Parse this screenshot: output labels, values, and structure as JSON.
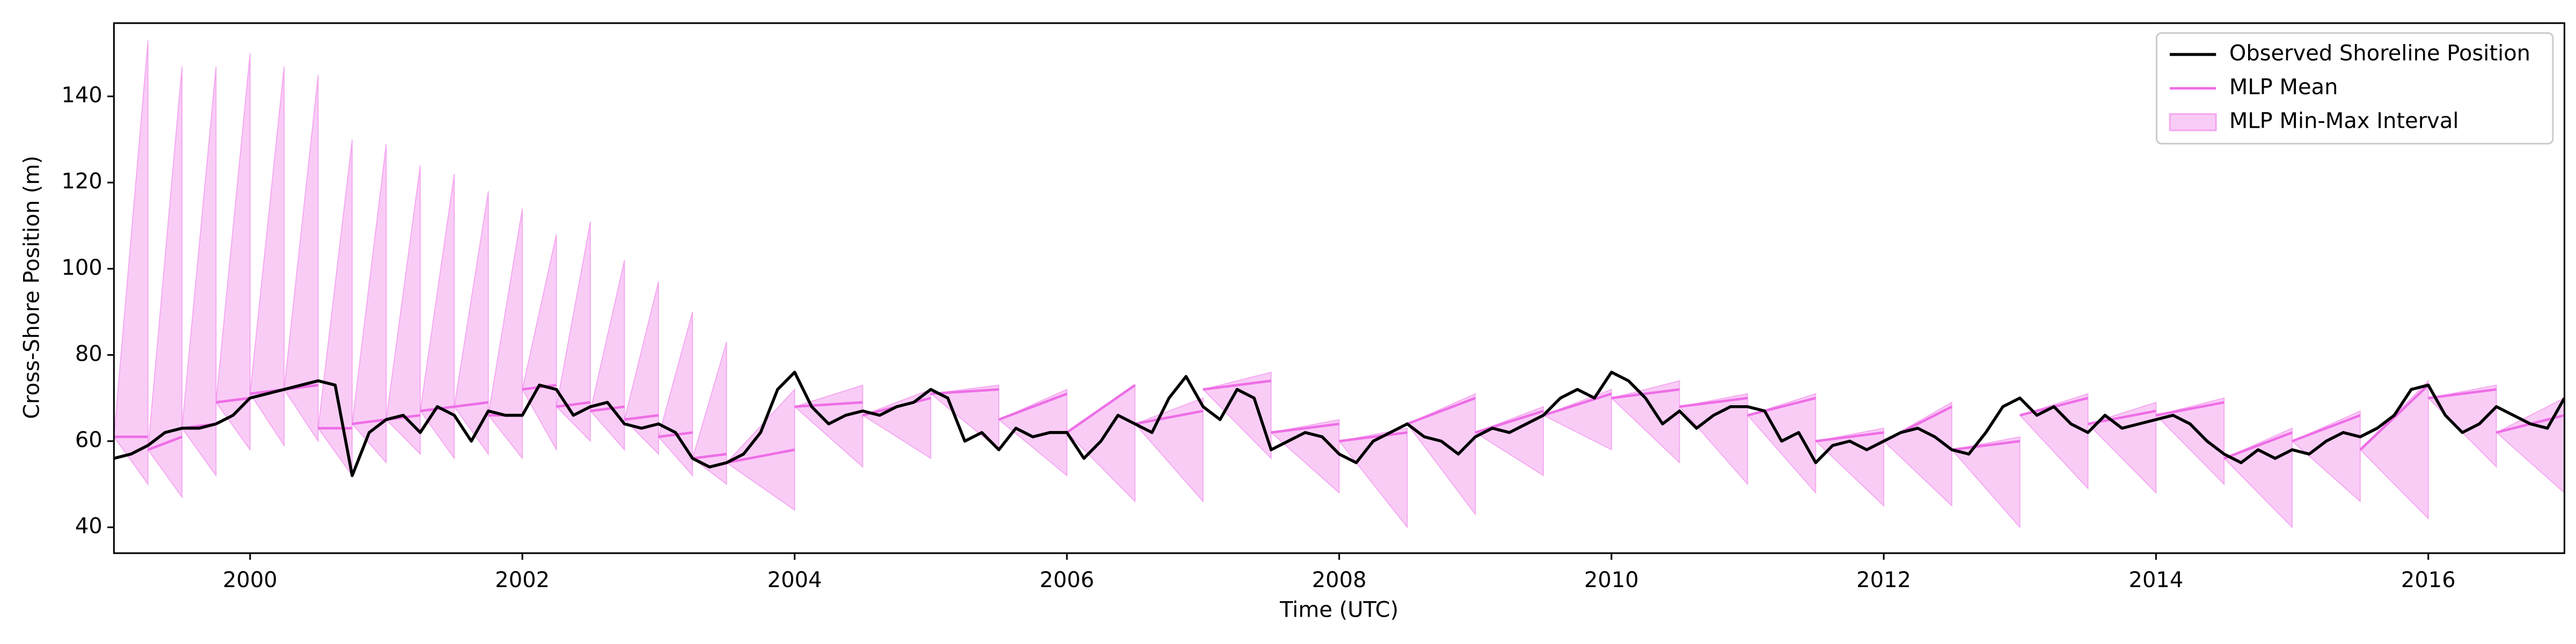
{
  "chart_data": {
    "type": "line",
    "xlabel": "Time (UTC)",
    "ylabel": "Cross-Shore Position (m)",
    "xlim": [
      1999,
      2017
    ],
    "ylim": [
      34,
      157
    ],
    "xticks": [
      2000,
      2002,
      2004,
      2006,
      2008,
      2010,
      2012,
      2014,
      2016
    ],
    "yticks": [
      40,
      60,
      80,
      100,
      120,
      140
    ],
    "legend": "upper right",
    "series": [
      {
        "name": "Observed Shoreline Position",
        "color": "#000000",
        "kind": "line",
        "x": [
          1999,
          1999.125,
          1999.25,
          1999.375,
          1999.5,
          1999.625,
          1999.75,
          1999.875,
          2000,
          2000.125,
          2000.25,
          2000.375,
          2000.5,
          2000.625,
          2000.75,
          2000.875,
          2001,
          2001.125,
          2001.25,
          2001.375,
          2001.5,
          2001.625,
          2001.75,
          2001.875,
          2002,
          2002.125,
          2002.25,
          2002.375,
          2002.5,
          2002.625,
          2002.75,
          2002.875,
          2003,
          2003.125,
          2003.25,
          2003.375,
          2003.5,
          2003.625,
          2003.75,
          2003.875,
          2004,
          2004.125,
          2004.25,
          2004.375,
          2004.5,
          2004.625,
          2004.75,
          2004.875,
          2005,
          2005.125,
          2005.25,
          2005.375,
          2005.5,
          2005.625,
          2005.75,
          2005.875,
          2006,
          2006.125,
          2006.25,
          2006.375,
          2006.5,
          2006.625,
          2006.75,
          2006.875,
          2007,
          2007.125,
          2007.25,
          2007.375,
          2007.5,
          2007.625,
          2007.75,
          2007.875,
          2008,
          2008.125,
          2008.25,
          2008.375,
          2008.5,
          2008.625,
          2008.75,
          2008.875,
          2009,
          2009.125,
          2009.25,
          2009.375,
          2009.5,
          2009.625,
          2009.75,
          2009.875,
          2010,
          2010.125,
          2010.25,
          2010.375,
          2010.5,
          2010.625,
          2010.75,
          2010.875,
          2011,
          2011.125,
          2011.25,
          2011.375,
          2011.5,
          2011.625,
          2011.75,
          2011.875,
          2012,
          2012.125,
          2012.25,
          2012.375,
          2012.5,
          2012.625,
          2012.75,
          2012.875,
          2013,
          2013.125,
          2013.25,
          2013.375,
          2013.5,
          2013.625,
          2013.75,
          2013.875,
          2014,
          2014.125,
          2014.25,
          2014.375,
          2014.5,
          2014.625,
          2014.75,
          2014.875,
          2015,
          2015.125,
          2015.25,
          2015.375,
          2015.5,
          2015.625,
          2015.75,
          2015.875,
          2016,
          2016.125,
          2016.25,
          2016.375,
          2016.5,
          2016.625,
          2016.75,
          2016.875,
          2017
        ],
        "values": [
          56,
          57,
          59,
          62,
          63,
          63,
          64,
          66,
          70,
          71,
          72,
          73,
          74,
          73,
          52,
          62,
          65,
          66,
          62,
          68,
          66,
          60,
          67,
          66,
          66,
          73,
          72,
          66,
          68,
          69,
          64,
          63,
          64,
          62,
          56,
          54,
          55,
          57,
          62,
          72,
          76,
          68,
          64,
          66,
          67,
          66,
          68,
          69,
          72,
          70,
          60,
          62,
          58,
          63,
          61,
          62,
          62,
          56,
          60,
          66,
          64,
          62,
          70,
          75,
          68,
          65,
          72,
          70,
          58,
          60,
          62,
          61,
          57,
          55,
          60,
          62,
          64,
          61,
          60,
          57,
          61,
          63,
          62,
          64,
          66,
          70,
          72,
          70,
          76,
          74,
          70,
          64,
          67,
          63,
          66,
          68,
          68,
          67,
          60,
          62,
          55,
          59,
          60,
          58,
          60,
          62,
          63,
          61,
          58,
          57,
          62,
          68,
          70,
          66,
          68,
          64,
          62,
          66,
          63,
          64,
          65,
          66,
          64,
          60,
          57,
          55,
          58,
          56,
          58,
          57,
          60,
          62,
          61,
          63,
          66,
          72,
          73,
          66,
          62,
          64,
          68,
          66,
          64,
          63,
          70
        ]
      },
      {
        "name": "MLP Mean",
        "color": "#ee6ee6",
        "kind": "line",
        "x": [
          1999,
          1999.25,
          1999.25,
          1999.25,
          1999.5,
          1999.5,
          1999.5,
          1999.75,
          1999.75,
          1999.75,
          2000,
          2000,
          2000,
          2000.25,
          2000.25,
          2000.25,
          2000.5,
          2000.5,
          2000.5,
          2000.75,
          2000.75,
          2000.75,
          2001,
          2001,
          2001,
          2001.25,
          2001.25,
          2001.25,
          2001.5,
          2001.5,
          2001.5,
          2001.75,
          2001.75,
          2001.75,
          2002,
          2002,
          2002,
          2002.25,
          2002.25,
          2002.25,
          2002.5,
          2002.5,
          2002.5,
          2002.75,
          2002.75,
          2002.75,
          2003,
          2003,
          2003,
          2003.25,
          2003.25,
          2003.25,
          2003.5,
          2003.5,
          2003.5,
          2004,
          2004,
          2004,
          2004.5,
          2004.5,
          2004.5,
          2005,
          2005,
          2005,
          2005.5,
          2005.5,
          2005.5,
          2006,
          2006,
          2006,
          2006.5,
          2006.5,
          2006.5,
          2007,
          2007,
          2007,
          2007.5,
          2007.5,
          2007.5,
          2008,
          2008,
          2008,
          2008.5,
          2008.5,
          2008.5,
          2009,
          2009,
          2009,
          2009.5,
          2009.5,
          2009.5,
          2010,
          2010,
          2010,
          2010.5,
          2010.5,
          2010.5,
          2011,
          2011,
          2011,
          2011.5,
          2011.5,
          2011.5,
          2012,
          2012,
          2012,
          2012.5,
          2012.5,
          2012.5,
          2013,
          2013,
          2013,
          2013.5,
          2013.5,
          2013.5,
          2014,
          2014,
          2014,
          2014.5,
          2014.5,
          2014.5,
          2015,
          2015,
          2015,
          2015.5,
          2015.5,
          2015.5,
          2016,
          2016,
          2016,
          2016.5,
          2016.5,
          2016.5,
          2017
        ],
        "values": [
          61,
          61,
          null,
          58,
          61,
          null,
          63,
          64,
          null,
          69,
          70,
          null,
          71,
          72,
          null,
          72,
          73,
          null,
          63,
          63,
          null,
          64,
          65,
          null,
          65,
          66,
          null,
          67,
          68,
          null,
          68,
          69,
          null,
          66,
          66,
          null,
          72,
          73,
          null,
          68,
          69,
          null,
          67,
          68,
          null,
          65,
          66,
          null,
          61,
          62,
          null,
          56,
          57,
          null,
          55,
          58,
          null,
          68,
          69,
          null,
          66,
          70,
          null,
          71,
          72,
          null,
          65,
          71,
          null,
          62,
          73,
          null,
          64,
          67,
          null,
          72,
          74,
          null,
          62,
          64,
          null,
          60,
          62,
          null,
          64,
          70,
          null,
          62,
          67,
          null,
          66,
          71,
          null,
          70,
          72,
          null,
          68,
          70,
          null,
          66,
          70,
          null,
          60,
          62,
          null,
          60,
          68,
          null,
          58,
          60,
          null,
          66,
          70,
          null,
          64,
          67,
          null,
          66,
          69,
          null,
          56,
          62,
          null,
          60,
          66,
          null,
          58,
          73,
          null,
          70,
          72,
          null,
          62,
          66
        ]
      },
      {
        "name": "MLP Min-Max Interval",
        "color": "#ee6ee6",
        "kind": "band",
        "x": [
          1999,
          1999.25,
          1999.25,
          1999.25,
          1999.5,
          1999.5,
          1999.5,
          1999.75,
          1999.75,
          1999.75,
          2000,
          2000,
          2000,
          2000.25,
          2000.25,
          2000.25,
          2000.5,
          2000.5,
          2000.5,
          2000.75,
          2000.75,
          2000.75,
          2001,
          2001,
          2001,
          2001.25,
          2001.25,
          2001.25,
          2001.5,
          2001.5,
          2001.5,
          2001.75,
          2001.75,
          2001.75,
          2002,
          2002,
          2002,
          2002.25,
          2002.25,
          2002.25,
          2002.5,
          2002.5,
          2002.5,
          2002.75,
          2002.75,
          2002.75,
          2003,
          2003,
          2003,
          2003.25,
          2003.25,
          2003.25,
          2003.5,
          2003.5,
          2003.5,
          2004,
          2004,
          2004,
          2004.5,
          2004.5,
          2004.5,
          2005,
          2005,
          2005,
          2005.5,
          2005.5,
          2005.5,
          2006,
          2006,
          2006,
          2006.5,
          2006.5,
          2006.5,
          2007,
          2007,
          2007,
          2007.5,
          2007.5,
          2007.5,
          2008,
          2008,
          2008,
          2008.5,
          2008.5,
          2008.5,
          2009,
          2009,
          2009,
          2009.5,
          2009.5,
          2009.5,
          2010,
          2010,
          2010,
          2010.5,
          2010.5,
          2010.5,
          2011,
          2011,
          2011,
          2011.5,
          2011.5,
          2011.5,
          2012,
          2012,
          2012,
          2012.5,
          2012.5,
          2012.5,
          2013,
          2013,
          2013,
          2013.5,
          2013.5,
          2013.5,
          2014,
          2014,
          2014,
          2014.5,
          2014.5,
          2014.5,
          2015,
          2015,
          2015,
          2015.5,
          2015.5,
          2015.5,
          2016,
          2016,
          2016,
          2016.5,
          2016.5,
          2016.5,
          2017
        ],
        "lower": [
          61,
          50,
          null,
          58,
          47,
          null,
          63,
          52,
          null,
          69,
          58,
          null,
          71,
          59,
          null,
          72,
          60,
          null,
          63,
          52,
          null,
          64,
          55,
          null,
          65,
          57,
          null,
          67,
          56,
          null,
          68,
          57,
          null,
          66,
          56,
          null,
          72,
          58,
          null,
          68,
          60,
          null,
          67,
          58,
          null,
          65,
          57,
          null,
          61,
          52,
          null,
          56,
          50,
          null,
          55,
          44,
          null,
          68,
          54,
          null,
          66,
          56,
          null,
          71,
          58,
          null,
          65,
          52,
          null,
          62,
          46,
          null,
          64,
          46,
          null,
          72,
          56,
          null,
          62,
          48,
          null,
          60,
          40,
          null,
          64,
          43,
          null,
          62,
          52,
          null,
          66,
          58,
          null,
          70,
          55,
          null,
          68,
          50,
          null,
          66,
          48,
          null,
          60,
          45,
          null,
          60,
          45,
          null,
          58,
          40,
          null,
          66,
          49,
          null,
          64,
          48,
          null,
          66,
          50,
          null,
          56,
          40,
          null,
          60,
          46,
          null,
          58,
          42,
          null,
          70,
          54,
          null,
          62,
          48
        ],
        "upper": [
          61,
          153,
          null,
          58,
          147,
          null,
          63,
          147,
          null,
          69,
          150,
          null,
          71,
          147,
          null,
          72,
          145,
          null,
          63,
          130,
          null,
          64,
          129,
          null,
          65,
          124,
          null,
          67,
          122,
          null,
          68,
          118,
          null,
          66,
          114,
          null,
          72,
          108,
          null,
          68,
          111,
          null,
          67,
          102,
          null,
          65,
          97,
          null,
          61,
          90,
          null,
          56,
          83,
          null,
          55,
          72,
          null,
          68,
          73,
          null,
          66,
          72,
          null,
          71,
          73,
          null,
          65,
          72,
          null,
          62,
          73,
          null,
          64,
          70,
          null,
          72,
          76,
          null,
          62,
          65,
          null,
          60,
          63,
          null,
          64,
          71,
          null,
          62,
          68,
          null,
          66,
          72,
          null,
          70,
          74,
          null,
          68,
          71,
          null,
          66,
          71,
          null,
          60,
          63,
          null,
          60,
          69,
          null,
          58,
          61,
          null,
          66,
          71,
          null,
          64,
          69,
          null,
          66,
          70,
          null,
          56,
          63,
          null,
          60,
          67,
          null,
          58,
          74,
          null,
          70,
          73,
          null,
          62,
          70
        ]
      }
    ]
  }
}
